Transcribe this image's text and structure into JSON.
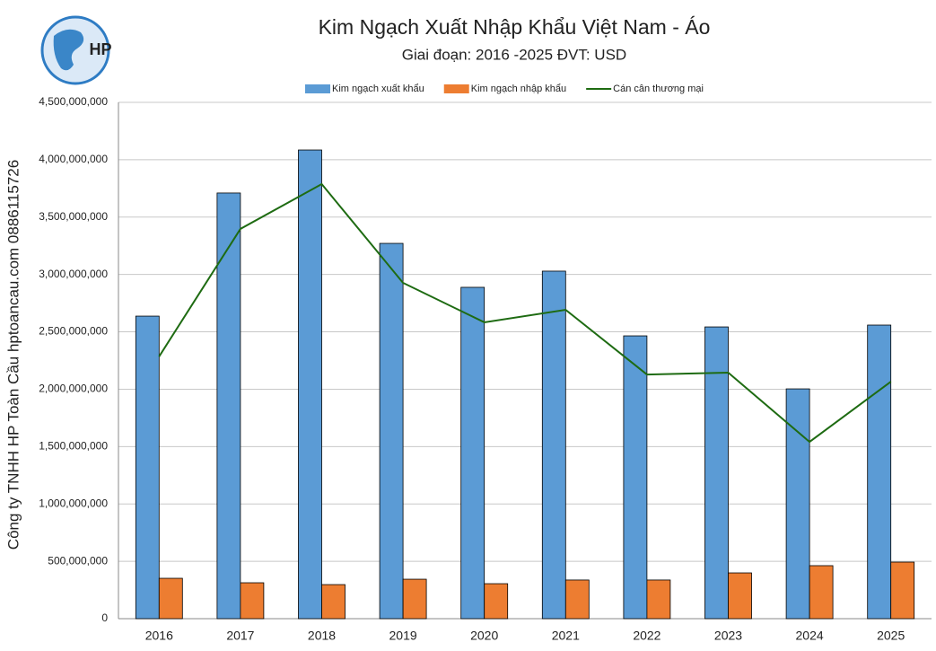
{
  "logo_text": "HP",
  "chart_data": {
    "type": "bar",
    "title": "Kim Ngạch Xuất Nhập Khẩu Việt Nam - Áo",
    "subtitle": "Giai đoạn: 2016 -2025  ĐVT: USD",
    "side_text": "Công ty TNHH HP Toàn Cầu hptoancau.com 0886115726",
    "categories": [
      "2016",
      "2017",
      "2018",
      "2019",
      "2020",
      "2021",
      "2022",
      "2023",
      "2024",
      "2025"
    ],
    "series": [
      {
        "name": "Kim ngạch xuất khẩu",
        "type": "bar",
        "color": "#5b9bd5",
        "values": [
          2637000000,
          3710000000,
          4085000000,
          3271000000,
          2888000000,
          3029000000,
          2465000000,
          2543000000,
          2003000000,
          2559000000
        ]
      },
      {
        "name": "Kim ngạch nhập khẩu",
        "type": "bar",
        "color": "#ed7d31",
        "values": [
          352000000,
          313000000,
          297000000,
          344000000,
          305000000,
          337000000,
          337000000,
          399000000,
          462000000,
          493000000
        ]
      },
      {
        "name": "Cán cân thương mại",
        "type": "line",
        "color": "#1e6b12",
        "values": [
          2285000000,
          3397000000,
          3788000000,
          2927000000,
          2583000000,
          2692000000,
          2128000000,
          2144000000,
          1541000000,
          2066000000
        ]
      }
    ],
    "ylim": [
      0,
      4500000000
    ],
    "yticks": [
      0,
      {
        "value": 500000000,
        "label": "500,000,000"
      },
      {
        "value": 1000000000,
        "label": "1,000,000,000"
      },
      {
        "value": 1500000000,
        "label": "1,500,000,000"
      },
      {
        "value": 2000000000,
        "label": "2,000,000,000"
      },
      {
        "value": 2500000000,
        "label": "2,500,000,000"
      },
      {
        "value": 3000000000,
        "label": "3,000,000,000"
      },
      {
        "value": 3500000000,
        "label": "3,500,000,000"
      },
      {
        "value": 4000000000,
        "label": "4,000,000,000"
      },
      {
        "value": 4500000000,
        "label": "4,500,000,000"
      }
    ],
    "grid": true,
    "legend": "top"
  }
}
